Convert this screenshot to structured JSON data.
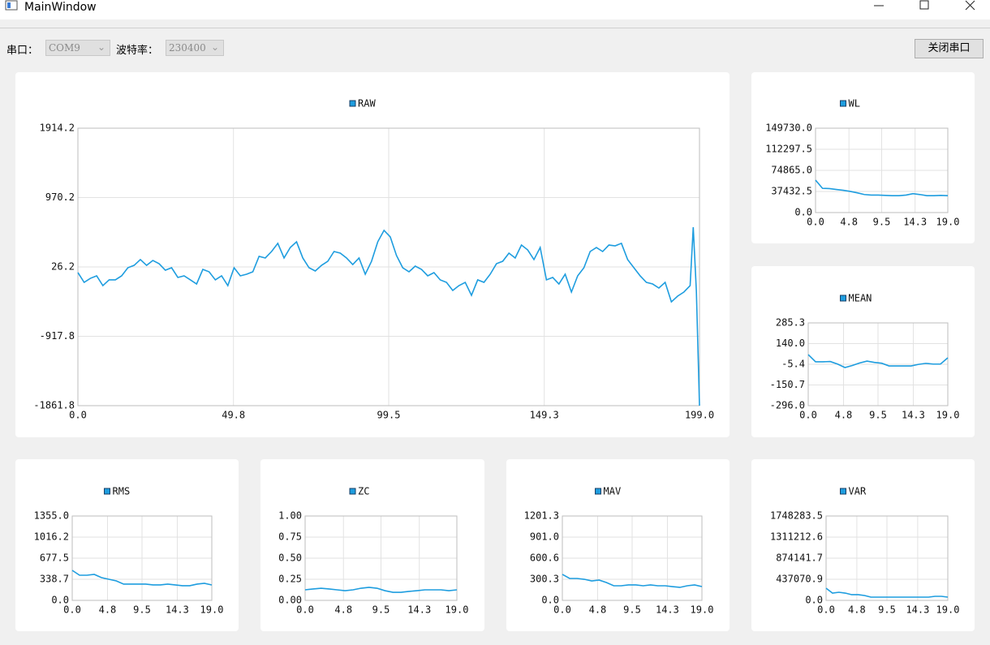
{
  "window": {
    "title": "MainWindow"
  },
  "toolbar": {
    "port_label": "串口：",
    "port": "COM9",
    "baud_label": "波特率：",
    "baud": "230400",
    "button": "关闭串口"
  },
  "chart_data": [
    {
      "type": "line",
      "x": [
        0,
        2,
        4,
        6,
        8,
        10,
        12,
        14,
        16,
        18,
        20,
        22,
        24,
        26,
        28,
        30,
        32,
        34,
        36,
        38,
        40,
        42,
        44,
        46,
        48,
        50,
        52,
        54,
        56,
        58,
        60,
        62,
        64,
        66,
        68,
        70,
        72,
        74,
        76,
        78,
        80,
        82,
        84,
        86,
        88,
        90,
        92,
        94,
        96,
        98,
        100,
        102,
        104,
        106,
        108,
        110,
        112,
        114,
        116,
        118,
        120,
        122,
        124,
        126,
        128,
        130,
        132,
        134,
        136,
        138,
        140,
        142,
        144,
        146,
        148,
        150,
        152,
        154,
        156,
        158,
        160,
        162,
        164,
        166,
        168,
        170,
        172,
        174,
        176,
        178,
        180,
        182,
        184,
        186,
        188,
        190,
        192,
        194,
        196,
        197,
        198,
        199
      ],
      "series": [
        {
          "name": "RAW",
          "color": "#1e9ddf",
          "values": [
            -51,
            -184,
            -129,
            -95,
            -228,
            -150,
            -150,
            -95,
            15,
            48,
            126,
            48,
            114,
            70,
            -18,
            15,
            -117,
            -95,
            -150,
            -206,
            -7,
            -40,
            -150,
            -95,
            -228,
            15,
            -95,
            -73,
            -40,
            170,
            148,
            236,
            347,
            148,
            291,
            368,
            148,
            15,
            -29,
            48,
            103,
            236,
            214,
            148,
            59,
            148,
            -73,
            103,
            368,
            523,
            435,
            181,
            15,
            -40,
            37,
            -7,
            -95,
            -51,
            -150,
            -184,
            -294,
            -228,
            -184,
            -360,
            -150,
            -184,
            -73,
            70,
            103,
            214,
            148,
            324,
            258,
            126,
            291,
            -150,
            -117,
            -206,
            -73,
            -316,
            -95,
            15,
            236,
            291,
            236,
            324,
            313,
            347,
            126,
            15,
            -95,
            -184,
            -206,
            -261,
            -184,
            -449,
            -371,
            -316,
            -228,
            567,
            -300,
            -1861.8
          ]
        }
      ],
      "xlim": [
        0,
        199
      ],
      "xticks": [
        {
          "value": 0,
          "label": "0.0"
        },
        49.8,
        99.5,
        149.3,
        {
          "value": 199,
          "label": "199.0"
        }
      ],
      "ylim": [
        -1861.8,
        1914.2
      ],
      "yticks": [
        -1861.8,
        -917.8,
        26.2,
        970.2,
        1914.2
      ],
      "grid": true
    },
    {
      "type": "line",
      "x": [
        0,
        1,
        2,
        3,
        4,
        5,
        6,
        7,
        8,
        9,
        10,
        11,
        12,
        13,
        14,
        15,
        16,
        17,
        18,
        19
      ],
      "series": [
        {
          "name": "WL",
          "color": "#1e9ddf",
          "values": [
            57600,
            43000,
            42500,
            41000,
            39500,
            37500,
            35000,
            32000,
            31000,
            31000,
            30500,
            30000,
            30000,
            31000,
            33500,
            32000,
            30000,
            30000,
            30500,
            30000
          ]
        }
      ],
      "xlim": [
        0,
        19
      ],
      "xticks": [
        {
          "value": 0,
          "label": "0.0"
        },
        4.8,
        9.5,
        14.3,
        {
          "value": 19,
          "label": "19.0"
        }
      ],
      "ylim": [
        0,
        149730
      ],
      "yticks": [
        {
          "value": 0,
          "label": "0.0"
        },
        37432.5,
        {
          "value": 74865,
          "label": "74865.0"
        },
        112297.5,
        {
          "value": 149730,
          "label": "149730.0"
        }
      ],
      "grid": true
    },
    {
      "type": "line",
      "x": [
        0,
        1,
        2,
        3,
        4,
        5,
        6,
        7,
        8,
        9,
        10,
        11,
        12,
        13,
        14,
        15,
        16,
        17,
        18,
        19
      ],
      "series": [
        {
          "name": "MEAN",
          "color": "#1e9ddf",
          "values": [
            63,
            12,
            12,
            14,
            -4,
            -28,
            -14,
            4,
            17,
            8,
            2,
            -17,
            -17,
            -17,
            -17,
            -6,
            1,
            -4,
            -4,
            40
          ]
        }
      ],
      "xlim": [
        0,
        19
      ],
      "xticks": [
        {
          "value": 0,
          "label": "0.0"
        },
        4.8,
        9.5,
        14.3,
        {
          "value": 19,
          "label": "19.0"
        }
      ],
      "ylim": [
        -296,
        285.3
      ],
      "yticks": [
        {
          "value": -296,
          "label": "-296.0"
        },
        -150.7,
        -5.4,
        {
          "value": 140,
          "label": "140.0"
        },
        285.3
      ],
      "grid": true
    },
    {
      "type": "line",
      "x": [
        0,
        1,
        2,
        3,
        4,
        5,
        6,
        7,
        8,
        9,
        10,
        11,
        12,
        13,
        14,
        15,
        16,
        17,
        18,
        19
      ],
      "series": [
        {
          "name": "RMS",
          "color": "#1e9ddf",
          "values": [
            482,
            404,
            404,
            417,
            365,
            339,
            313,
            261,
            261,
            261,
            261,
            248,
            248,
            261,
            248,
            235,
            235,
            261,
            274,
            248
          ]
        }
      ],
      "xlim": [
        0,
        19
      ],
      "xticks": [
        {
          "value": 0,
          "label": "0.0"
        },
        4.8,
        9.5,
        14.3,
        {
          "value": 19,
          "label": "19.0"
        }
      ],
      "ylim": [
        0,
        1355
      ],
      "yticks": [
        {
          "value": 0,
          "label": "0.0"
        },
        338.7,
        677.5,
        1016.2,
        {
          "value": 1355,
          "label": "1355.0"
        }
      ],
      "grid": true
    },
    {
      "type": "line",
      "x": [
        0,
        1,
        2,
        3,
        4,
        5,
        6,
        7,
        8,
        9,
        10,
        11,
        12,
        13,
        14,
        15,
        16,
        17,
        18,
        19
      ],
      "series": [
        {
          "name": "ZC",
          "color": "#1e9ddf",
          "values": [
            0.125,
            0.135,
            0.144,
            0.135,
            0.125,
            0.115,
            0.125,
            0.144,
            0.154,
            0.144,
            0.115,
            0.096,
            0.096,
            0.106,
            0.115,
            0.125,
            0.125,
            0.125,
            0.115,
            0.125
          ]
        }
      ],
      "xlim": [
        0,
        19
      ],
      "xticks": [
        {
          "value": 0,
          "label": "0.0"
        },
        4.8,
        9.5,
        14.3,
        {
          "value": 19,
          "label": "19.0"
        }
      ],
      "ylim": [
        0,
        1
      ],
      "yticks": [
        {
          "value": 0,
          "label": "0.00"
        },
        0.25,
        {
          "value": 0.5,
          "label": "0.50"
        },
        0.75,
        {
          "value": 1,
          "label": "1.00"
        }
      ],
      "grid": true
    },
    {
      "type": "line",
      "x": [
        0,
        1,
        2,
        3,
        4,
        5,
        6,
        7,
        8,
        9,
        10,
        11,
        12,
        13,
        14,
        15,
        16,
        17,
        18,
        19
      ],
      "series": [
        {
          "name": "MAV",
          "color": "#1e9ddf",
          "values": [
            370,
            312,
            312,
            300,
            277,
            289,
            254,
            208,
            208,
            220,
            220,
            208,
            220,
            208,
            208,
            196,
            185,
            208,
            220,
            196
          ]
        }
      ],
      "xlim": [
        0,
        19
      ],
      "xticks": [
        {
          "value": 0,
          "label": "0.0"
        },
        4.8,
        9.5,
        14.3,
        {
          "value": 19,
          "label": "19.0"
        }
      ],
      "ylim": [
        0,
        1201.3
      ],
      "yticks": [
        {
          "value": 0,
          "label": "0.0"
        },
        300.3,
        600.6,
        {
          "value": 901,
          "label": "901.0"
        },
        1201.3
      ],
      "grid": true
    },
    {
      "type": "line",
      "x": [
        0,
        1,
        2,
        3,
        4,
        5,
        6,
        7,
        8,
        9,
        10,
        11,
        12,
        13,
        14,
        15,
        16,
        17,
        18,
        19
      ],
      "series": [
        {
          "name": "VAR",
          "color": "#1e9ddf",
          "values": [
            252000,
            151000,
            168000,
            151000,
            118000,
            118000,
            101000,
            67000,
            67000,
            67000,
            67000,
            67000,
            67000,
            67000,
            67000,
            67000,
            67000,
            84000,
            84000,
            67000
          ]
        }
      ],
      "xlim": [
        0,
        19
      ],
      "xticks": [
        {
          "value": 0,
          "label": "0.0"
        },
        4.8,
        9.5,
        14.3,
        {
          "value": 19,
          "label": "19.0"
        }
      ],
      "ylim": [
        0,
        1748283.5
      ],
      "yticks": [
        {
          "value": 0,
          "label": "0.0"
        },
        437070.9,
        874141.7,
        1311212.6,
        1748283.5
      ],
      "grid": true
    }
  ]
}
